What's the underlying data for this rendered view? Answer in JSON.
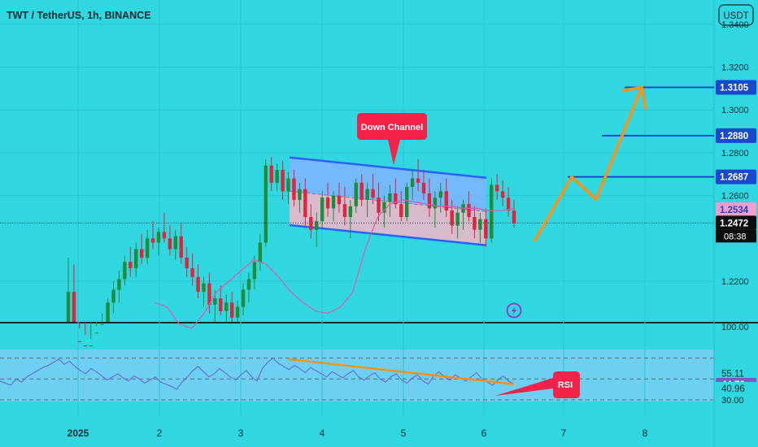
{
  "header": {
    "title": "TWT / TetherUS, 1h, BINANCE",
    "currency_button": "USDT"
  },
  "chart_data": [
    {
      "type": "candlestick",
      "title": "TWT / TetherUS, 1h, BINANCE",
      "y_ticks": [
        "1.3400",
        "1.3200",
        "1.3000",
        "1.2800",
        "1.2600",
        "1.2200"
      ],
      "ylim": [
        1.2,
        1.3463
      ],
      "x_ticks": [
        "2025",
        "2",
        "3",
        "4",
        "5",
        "6",
        "7",
        "8"
      ],
      "price_badges": [
        {
          "label": "1.3105",
          "value": 1.3105,
          "color": "#1848cc"
        },
        {
          "label": "1.2880",
          "value": 1.288,
          "color": "#1848cc"
        },
        {
          "label": "1.2687",
          "value": 1.2687,
          "color": "#1848cc"
        },
        {
          "label": "1.2534",
          "value": 1.2534,
          "color": "#f0a0c8"
        },
        {
          "label": "1.2472",
          "value": 1.2472,
          "color": "#0d0d0d"
        }
      ],
      "countdown": "08:38",
      "annotations": {
        "channel_label": "Down Channel",
        "rsi_label": "RSI"
      },
      "candles_first_half": [
        [
          1.2,
          1.231,
          1.185,
          1.215
        ],
        [
          1.215,
          1.228,
          1.19,
          1.192
        ],
        [
          1.192,
          1.198,
          1.17,
          1.173
        ],
        [
          1.19,
          1.195,
          1.18,
          1.186
        ],
        [
          1.186,
          1.193,
          1.18,
          1.19
        ],
        [
          1.19,
          1.199,
          1.186,
          1.196
        ],
        [
          1.196,
          1.205,
          1.19,
          1.2
        ],
        [
          1.2,
          1.212,
          1.198,
          1.21
        ],
        [
          1.21,
          1.22,
          1.205,
          1.216
        ],
        [
          1.216,
          1.225,
          1.21,
          1.221
        ],
        [
          1.221,
          1.232,
          1.218,
          1.229
        ],
        [
          1.229,
          1.236,
          1.222,
          1.226
        ],
        [
          1.226,
          1.238,
          1.222,
          1.235
        ],
        [
          1.235,
          1.242,
          1.228,
          1.231
        ],
        [
          1.231,
          1.244,
          1.228,
          1.24
        ],
        [
          1.24,
          1.248,
          1.235,
          1.238
        ],
        [
          1.238,
          1.245,
          1.232,
          1.243
        ],
        [
          1.243,
          1.252,
          1.238,
          1.24
        ],
        [
          1.24,
          1.246,
          1.232,
          1.235
        ],
        [
          1.235,
          1.244,
          1.23,
          1.241
        ],
        [
          1.241,
          1.247,
          1.228,
          1.231
        ],
        [
          1.231,
          1.236,
          1.222,
          1.226
        ],
        [
          1.226,
          1.233,
          1.218,
          1.222
        ],
        [
          1.222,
          1.228,
          1.212,
          1.215
        ],
        [
          1.215,
          1.222,
          1.208,
          1.219
        ],
        [
          1.219,
          1.224,
          1.205,
          1.209
        ],
        [
          1.209,
          1.216,
          1.2,
          1.212
        ],
        [
          1.212,
          1.218,
          1.204,
          1.206
        ],
        [
          1.206,
          1.214,
          1.2,
          1.21
        ],
        [
          1.21,
          1.215,
          1.198,
          1.203
        ],
        [
          1.203,
          1.211,
          1.196,
          1.208
        ],
        [
          1.208,
          1.219,
          1.204,
          1.216
        ],
        [
          1.216,
          1.224,
          1.21,
          1.221
        ],
        [
          1.221,
          1.232,
          1.216,
          1.229
        ],
        [
          1.229,
          1.242,
          1.225,
          1.238
        ],
        [
          1.238,
          1.277,
          1.236,
          1.274
        ],
        [
          1.274,
          1.278,
          1.262,
          1.266
        ],
        [
          1.266,
          1.275,
          1.262,
          1.272
        ],
        [
          1.272,
          1.276,
          1.258,
          1.262
        ],
        [
          1.262,
          1.271,
          1.256,
          1.268
        ],
        [
          1.268,
          1.272,
          1.255,
          1.258
        ],
        [
          1.258,
          1.266,
          1.252,
          1.263
        ],
        [
          1.263,
          1.268,
          1.246,
          1.25
        ],
        [
          1.25,
          1.256,
          1.24,
          1.244
        ],
        [
          1.244,
          1.252,
          1.236,
          1.248
        ],
        [
          1.248,
          1.262,
          1.245,
          1.259
        ],
        [
          1.259,
          1.266,
          1.25,
          1.254
        ]
      ],
      "candles_second_half": [
        [
          1.254,
          1.262,
          1.248,
          1.26
        ],
        [
          1.26,
          1.266,
          1.252,
          1.256
        ],
        [
          1.256,
          1.264,
          1.246,
          1.25
        ],
        [
          1.25,
          1.258,
          1.24,
          1.255
        ],
        [
          1.255,
          1.268,
          1.252,
          1.266
        ],
        [
          1.266,
          1.27,
          1.255,
          1.258
        ],
        [
          1.258,
          1.266,
          1.25,
          1.263
        ],
        [
          1.263,
          1.27,
          1.256,
          1.259
        ],
        [
          1.259,
          1.266,
          1.248,
          1.252
        ],
        [
          1.252,
          1.26,
          1.245,
          1.257
        ],
        [
          1.257,
          1.265,
          1.25,
          1.261
        ],
        [
          1.261,
          1.268,
          1.254,
          1.256
        ],
        [
          1.256,
          1.262,
          1.248,
          1.25
        ],
        [
          1.25,
          1.266,
          1.248,
          1.264
        ],
        [
          1.264,
          1.272,
          1.258,
          1.268
        ],
        [
          1.268,
          1.277,
          1.262,
          1.266
        ],
        [
          1.266,
          1.272,
          1.258,
          1.261
        ],
        [
          1.261,
          1.268,
          1.25,
          1.254
        ],
        [
          1.254,
          1.262,
          1.245,
          1.259
        ],
        [
          1.259,
          1.266,
          1.252,
          1.262
        ],
        [
          1.262,
          1.268,
          1.25,
          1.253
        ],
        [
          1.253,
          1.258,
          1.242,
          1.246
        ],
        [
          1.246,
          1.255,
          1.24,
          1.252
        ],
        [
          1.252,
          1.258,
          1.244,
          1.256
        ],
        [
          1.256,
          1.262,
          1.248,
          1.25
        ],
        [
          1.25,
          1.255,
          1.24,
          1.244
        ],
        [
          1.244,
          1.252,
          1.238,
          1.249
        ],
        [
          1.249,
          1.254,
          1.236,
          1.24
        ],
        [
          1.24,
          1.268,
          1.238,
          1.265
        ],
        [
          1.265,
          1.27,
          1.258,
          1.262
        ],
        [
          1.262,
          1.267,
          1.255,
          1.259
        ],
        [
          1.259,
          1.264,
          1.25,
          1.253
        ],
        [
          1.253,
          1.258,
          1.245,
          1.247
        ]
      ],
      "ma_y": [
        1.21,
        1.208,
        1.2,
        1.198,
        1.205,
        1.215,
        1.22,
        1.225,
        1.23,
        1.228,
        1.222,
        1.215,
        1.21,
        1.206,
        1.205,
        1.208,
        1.215,
        1.235,
        1.25,
        1.256,
        1.258,
        1.257,
        1.256,
        1.255,
        1.255,
        1.254,
        1.254,
        1.253,
        1.253,
        1.254
      ],
      "channel": {
        "upper": [
          1.2778,
          1.2683
        ],
        "lower": [
          1.2462,
          1.2368
        ]
      },
      "projection": [
        1.2385,
        1.2687,
        1.2582,
        1.3105,
        1.3002
      ]
    },
    {
      "type": "line",
      "title": "",
      "y_ticks": [
        "100.00",
        "30.00"
      ],
      "levels": [
        70,
        50,
        30
      ],
      "badges": [
        {
          "label": "55.11",
          "value": 55.11
        },
        {
          "label": "44.78",
          "value": 44.78,
          "color": "#7e57c2"
        },
        {
          "label": "40.96",
          "value": 40.96
        }
      ],
      "values": [
        48,
        46,
        44,
        50,
        47,
        52,
        55,
        58,
        61,
        63,
        66,
        69,
        64,
        67,
        62,
        58,
        55,
        60,
        57,
        53,
        49,
        52,
        55,
        51,
        48,
        53,
        50,
        46,
        49,
        52,
        47,
        45,
        43,
        40,
        47,
        52,
        58,
        62,
        57,
        52,
        55,
        60,
        56,
        52,
        49,
        54,
        58,
        52,
        48,
        60,
        66,
        70,
        65,
        62,
        59,
        63,
        60,
        56,
        61,
        58,
        55,
        52,
        57,
        54,
        51,
        55,
        58,
        52,
        49,
        53,
        56,
        50,
        47,
        52,
        55,
        49,
        46,
        51,
        54,
        48,
        45,
        53,
        57,
        52,
        49,
        54,
        51,
        48,
        52,
        56,
        50,
        47,
        44,
        49,
        53,
        48,
        45
      ],
      "trendline": [
        69,
        45
      ]
    }
  ]
}
